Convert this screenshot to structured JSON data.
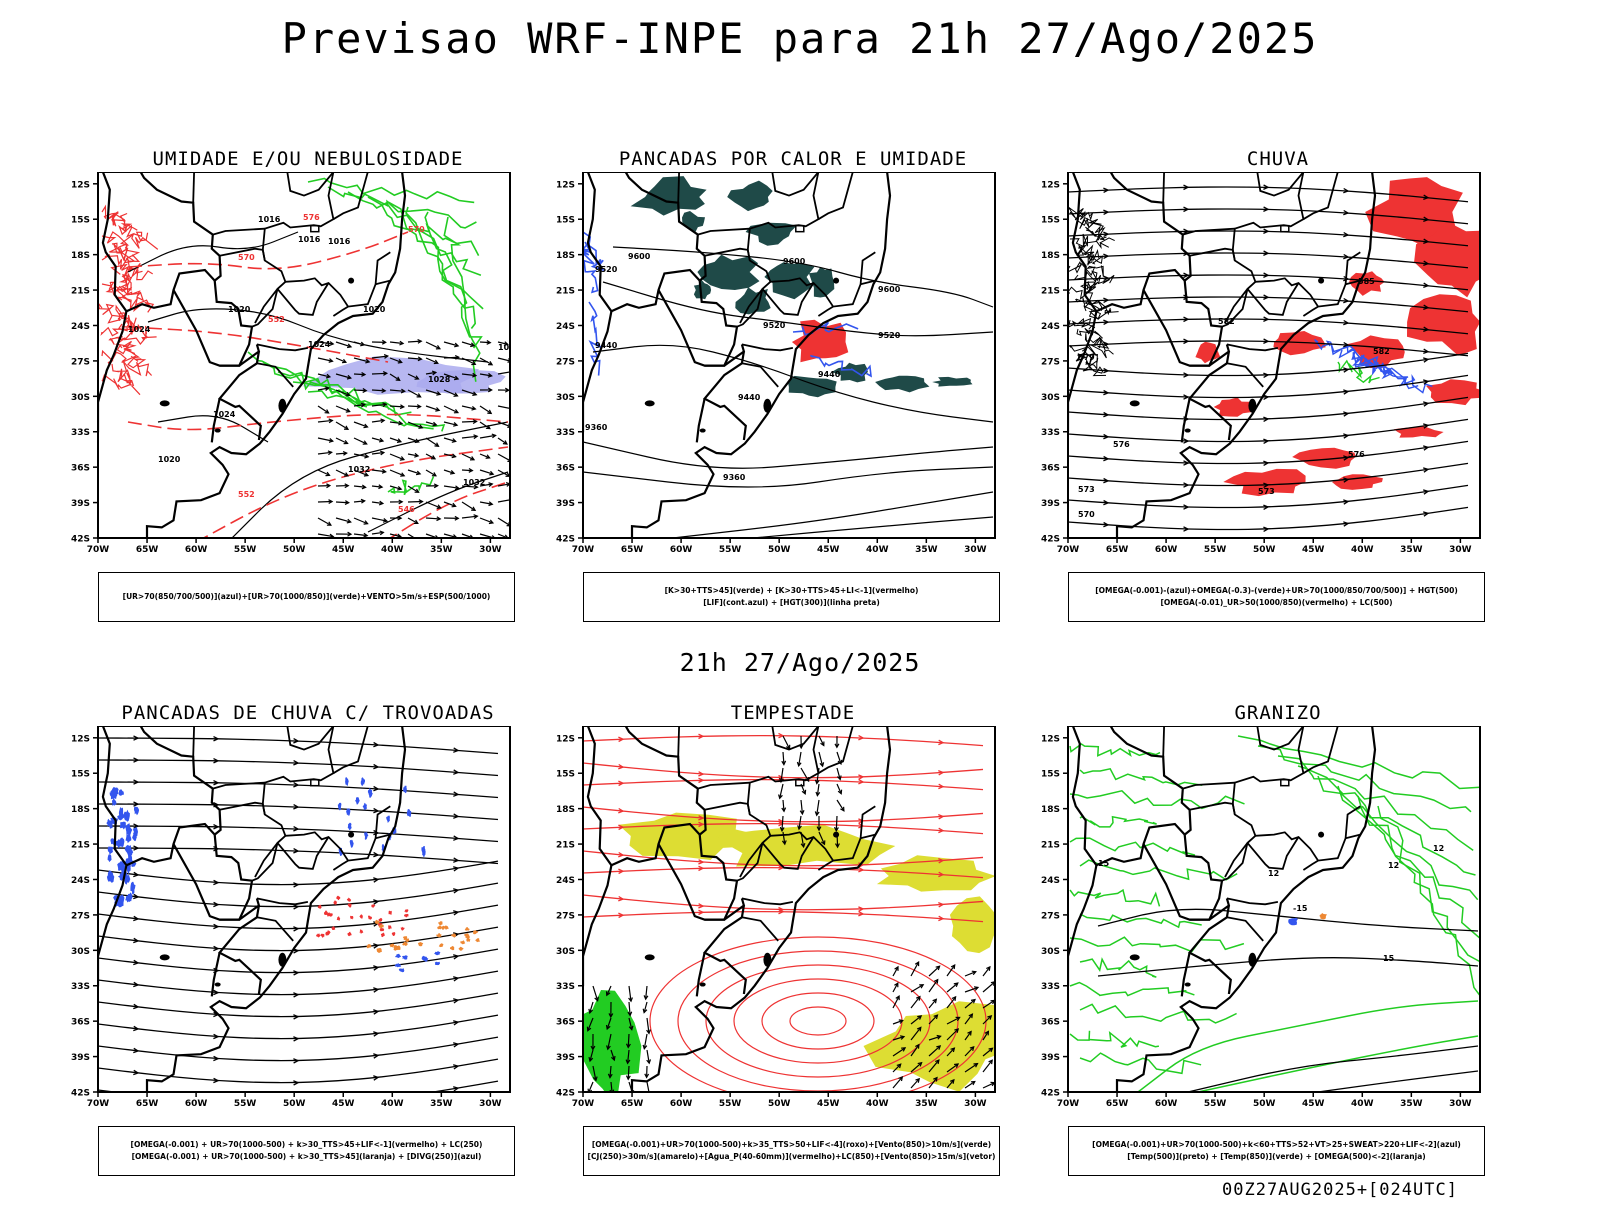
{
  "title": "Previsao WRF-INPE  para 21h 27/Ago/2025",
  "mid_title": "21h 27/Ago/2025",
  "footer": "00Z27AUG2025+[024UTC]",
  "axes": {
    "lat_labels": [
      "12S",
      "15S",
      "18S",
      "21S",
      "24S",
      "27S",
      "30S",
      "33S",
      "36S",
      "39S",
      "42S"
    ],
    "lon_labels": [
      "70W",
      "65W",
      "60W",
      "55W",
      "50W",
      "45W",
      "40W",
      "35W",
      "30W"
    ]
  },
  "colors": {
    "red": "#ee3333",
    "green": "#22cc22",
    "blue": "#3355ee",
    "lavender": "#aaaaee",
    "darkteal": "#1f4a48",
    "yellow": "#dddd33",
    "orange": "#ee8833",
    "black": "#000000"
  },
  "panels": [
    {
      "title": "UMIDADE E/OU NEBULOSIDADE",
      "legend": [
        "[UR>70(850/700/500)](azul)+[UR>70(1000/850)](verde)+VENTO>5m/s+ESP(500/1000)"
      ],
      "contour_labels": [
        "1016",
        "1016",
        "1016",
        "1020",
        "1020",
        "1020",
        "1024",
        "1024",
        "1024",
        "1024",
        "1028",
        "1028",
        "1032",
        "1032",
        "1032",
        "570",
        "570",
        "576",
        "552",
        "552",
        "546"
      ]
    },
    {
      "title": "PANCADAS POR CALOR E UMIDADE",
      "legend": [
        "[K>30+TTS>45](verde) + [K>30+TTS>45+LI<-1](vermelho)",
        "[LIF](cont.azul) + [HGT(300)](linha preta)"
      ],
      "contour_labels": [
        "9600",
        "9600",
        "9600",
        "9520",
        "9520",
        "9520",
        "9440",
        "9440",
        "9440",
        "9360",
        "9360"
      ]
    },
    {
      "title": "CHUVA",
      "legend": [
        "[OMEGA(-0.001)-(azul)+OMEGA(-0.3)-(verde)+UR>70(1000/850/700/500)] + HGT(500)",
        "[OMEGA(-0.01)_UR>50(1000/850)(vermelho) + LC(500)"
      ],
      "contour_labels": [
        "585",
        "582",
        "582",
        "579",
        "576",
        "576",
        "573",
        "570",
        "573"
      ]
    },
    {
      "title": "PANCADAS DE CHUVA C/ TROVOADAS",
      "legend": [
        "[OMEGA(-0.001) + UR>70(1000-500) + k>30_TTS>45+LIF<-1](vermelho) + LC(250)",
        "[OMEGA(-0.001) + UR>70(1000-500) + k>30_TTS>45](laranja) + [DIVG(250)](azul)"
      ],
      "contour_labels": []
    },
    {
      "title": "TEMPESTADE",
      "legend": [
        "[OMEGA(-0.001)+UR>70(1000-500)+k>35_TTS>50+LIF<-4](roxo)+[Vento(850)>10m/s](verde)",
        "[CJ(250)>30m/s](amarelo)+[Agua_P(40-60mm)](vermelho)+LC(850)+[Vento(850)>15m/s](vetor)"
      ],
      "contour_labels": []
    },
    {
      "title": "GRANIZO",
      "legend": [
        "[OMEGA(-0.001)+UR>70(1000-500)+k<60+TTS>52+VT>25+SWEAT>220+LIF<-2](azul)",
        "[Temp(500)](preto) + [Temp(850)](verde) + [OMEGA(500)<-2](laranja)"
      ],
      "contour_labels": [
        "12",
        "12",
        "15",
        "15",
        "12",
        "-15"
      ]
    }
  ]
}
